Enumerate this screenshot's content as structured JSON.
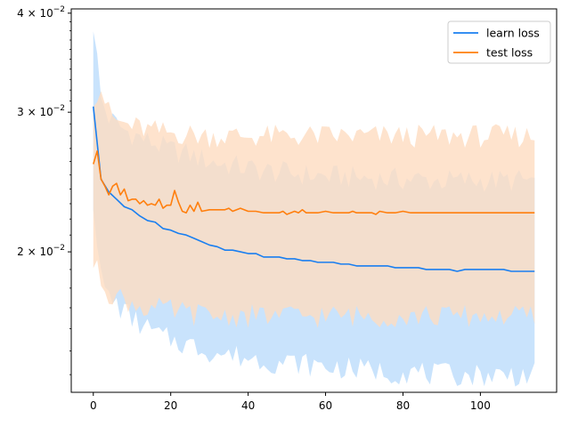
{
  "chart_data": {
    "type": "line",
    "title": "",
    "xlabel": "",
    "ylabel": "",
    "xlim": [
      -5.7,
      119.7
    ],
    "ylim": [
      0.0133,
      0.0405
    ],
    "yscale": "log",
    "grid": false,
    "legend_position": "top-right",
    "x_ticks": [
      0,
      20,
      40,
      60,
      80,
      100
    ],
    "x_tick_labels": [
      "0",
      "20",
      "40",
      "60",
      "80",
      "100"
    ],
    "y_ticks": [
      0.02,
      0.03,
      0.04
    ],
    "y_tick_labels": [
      {
        "base": "2",
        "exp": "−2"
      },
      {
        "base": "3",
        "exp": "−2"
      },
      {
        "base": "4",
        "exp": "−2"
      }
    ],
    "series": [
      {
        "name": "learn loss",
        "color": "#1a7ff0",
        "band_color": "#bcdcfb",
        "mean_points": [
          [
            0,
            0.0305
          ],
          [
            2,
            0.0247
          ],
          [
            4,
            0.0238
          ],
          [
            6,
            0.0233
          ],
          [
            8,
            0.0228
          ],
          [
            10,
            0.0226
          ],
          [
            12,
            0.0222
          ],
          [
            14,
            0.0219
          ],
          [
            16,
            0.0218
          ],
          [
            18,
            0.0214
          ],
          [
            20,
            0.0213
          ],
          [
            22,
            0.0211
          ],
          [
            24,
            0.021
          ],
          [
            26,
            0.0208
          ],
          [
            28,
            0.0206
          ],
          [
            30,
            0.0204
          ],
          [
            32,
            0.0203
          ],
          [
            34,
            0.0201
          ],
          [
            36,
            0.0201
          ],
          [
            38,
            0.02
          ],
          [
            40,
            0.0199
          ],
          [
            42,
            0.0199
          ],
          [
            44,
            0.0197
          ],
          [
            46,
            0.0197
          ],
          [
            48,
            0.0197
          ],
          [
            50,
            0.0196
          ],
          [
            52,
            0.0196
          ],
          [
            54,
            0.0195
          ],
          [
            56,
            0.0195
          ],
          [
            58,
            0.0194
          ],
          [
            60,
            0.0194
          ],
          [
            62,
            0.0194
          ],
          [
            64,
            0.0193
          ],
          [
            66,
            0.0193
          ],
          [
            68,
            0.0192
          ],
          [
            70,
            0.0192
          ],
          [
            72,
            0.0192
          ],
          [
            74,
            0.0192
          ],
          [
            76,
            0.0192
          ],
          [
            78,
            0.0191
          ],
          [
            80,
            0.0191
          ],
          [
            82,
            0.0191
          ],
          [
            84,
            0.0191
          ],
          [
            86,
            0.019
          ],
          [
            88,
            0.019
          ],
          [
            90,
            0.019
          ],
          [
            92,
            0.019
          ],
          [
            94,
            0.0189
          ],
          [
            96,
            0.019
          ],
          [
            98,
            0.019
          ],
          [
            100,
            0.019
          ],
          [
            102,
            0.019
          ],
          [
            104,
            0.019
          ],
          [
            106,
            0.019
          ],
          [
            108,
            0.0189
          ],
          [
            110,
            0.0189
          ],
          [
            112,
            0.0189
          ],
          [
            114,
            0.0189
          ]
        ],
        "lower_points": [
          [
            0,
            0.0232
          ],
          [
            2,
            0.0185
          ],
          [
            4,
            0.0175
          ],
          [
            6,
            0.0172
          ],
          [
            8,
            0.0168
          ],
          [
            10,
            0.0165
          ],
          [
            12,
            0.0162
          ],
          [
            14,
            0.016
          ],
          [
            16,
            0.0158
          ],
          [
            18,
            0.0156
          ],
          [
            20,
            0.0155
          ],
          [
            24,
            0.0153
          ],
          [
            28,
            0.0151
          ],
          [
            32,
            0.0149
          ],
          [
            36,
            0.0148
          ],
          [
            40,
            0.0147
          ],
          [
            44,
            0.0146
          ],
          [
            48,
            0.0145
          ],
          [
            52,
            0.0145
          ],
          [
            56,
            0.0144
          ],
          [
            60,
            0.0143
          ],
          [
            64,
            0.0143
          ],
          [
            68,
            0.0142
          ],
          [
            72,
            0.0142
          ],
          [
            76,
            0.0141
          ],
          [
            80,
            0.0141
          ],
          [
            84,
            0.0141
          ],
          [
            88,
            0.014
          ],
          [
            92,
            0.014
          ],
          [
            96,
            0.014
          ],
          [
            100,
            0.014
          ],
          [
            104,
            0.014
          ],
          [
            108,
            0.014
          ],
          [
            112,
            0.014
          ],
          [
            114,
            0.014
          ]
        ],
        "upper_points": [
          [
            0,
            0.0388
          ],
          [
            2,
            0.0312
          ],
          [
            4,
            0.0295
          ],
          [
            6,
            0.029
          ],
          [
            8,
            0.0285
          ],
          [
            10,
            0.0282
          ],
          [
            12,
            0.0279
          ],
          [
            14,
            0.0276
          ],
          [
            16,
            0.0274
          ],
          [
            18,
            0.0271
          ],
          [
            20,
            0.0269
          ],
          [
            24,
            0.0266
          ],
          [
            28,
            0.0262
          ],
          [
            32,
            0.0259
          ],
          [
            36,
            0.0257
          ],
          [
            40,
            0.0255
          ],
          [
            44,
            0.0253
          ],
          [
            48,
            0.0252
          ],
          [
            52,
            0.0251
          ],
          [
            56,
            0.025
          ],
          [
            60,
            0.0249
          ],
          [
            64,
            0.0249
          ],
          [
            68,
            0.0248
          ],
          [
            72,
            0.0248
          ],
          [
            76,
            0.0247
          ],
          [
            80,
            0.0247
          ],
          [
            84,
            0.0247
          ],
          [
            88,
            0.0246
          ],
          [
            92,
            0.0246
          ],
          [
            96,
            0.0246
          ],
          [
            100,
            0.0246
          ],
          [
            104,
            0.0246
          ],
          [
            108,
            0.0246
          ],
          [
            112,
            0.0246
          ],
          [
            114,
            0.0246
          ]
        ]
      },
      {
        "name": "test loss",
        "color": "#ff7f0e",
        "band_color": "#fedcc0",
        "mean_points": [
          [
            0,
            0.0258
          ],
          [
            1,
            0.0268
          ],
          [
            2,
            0.0247
          ],
          [
            3,
            0.0242
          ],
          [
            4,
            0.0236
          ],
          [
            5,
            0.0242
          ],
          [
            6,
            0.0244
          ],
          [
            7,
            0.0236
          ],
          [
            8,
            0.024
          ],
          [
            9,
            0.0232
          ],
          [
            10,
            0.0233
          ],
          [
            11,
            0.0233
          ],
          [
            12,
            0.023
          ],
          [
            13,
            0.0232
          ],
          [
            14,
            0.0229
          ],
          [
            15,
            0.023
          ],
          [
            16,
            0.0229
          ],
          [
            17,
            0.0233
          ],
          [
            18,
            0.0227
          ],
          [
            19,
            0.0229
          ],
          [
            20,
            0.0229
          ],
          [
            21,
            0.0239
          ],
          [
            22,
            0.0231
          ],
          [
            23,
            0.0225
          ],
          [
            24,
            0.0224
          ],
          [
            25,
            0.0229
          ],
          [
            26,
            0.0225
          ],
          [
            27,
            0.0231
          ],
          [
            28,
            0.0225
          ],
          [
            30,
            0.0226
          ],
          [
            32,
            0.0226
          ],
          [
            34,
            0.0226
          ],
          [
            35,
            0.0227
          ],
          [
            36,
            0.0225
          ],
          [
            38,
            0.0227
          ],
          [
            40,
            0.0225
          ],
          [
            42,
            0.0225
          ],
          [
            44,
            0.0224
          ],
          [
            46,
            0.0224
          ],
          [
            48,
            0.0224
          ],
          [
            49,
            0.0225
          ],
          [
            50,
            0.0223
          ],
          [
            52,
            0.0225
          ],
          [
            53,
            0.0224
          ],
          [
            54,
            0.0226
          ],
          [
            55,
            0.0224
          ],
          [
            56,
            0.0224
          ],
          [
            58,
            0.0224
          ],
          [
            60,
            0.0225
          ],
          [
            62,
            0.0224
          ],
          [
            64,
            0.0224
          ],
          [
            66,
            0.0224
          ],
          [
            67,
            0.0225
          ],
          [
            68,
            0.0224
          ],
          [
            70,
            0.0224
          ],
          [
            72,
            0.0224
          ],
          [
            73,
            0.0223
          ],
          [
            74,
            0.0225
          ],
          [
            76,
            0.0224
          ],
          [
            78,
            0.0224
          ],
          [
            80,
            0.0225
          ],
          [
            82,
            0.0224
          ],
          [
            84,
            0.0224
          ],
          [
            86,
            0.0224
          ],
          [
            88,
            0.0224
          ],
          [
            90,
            0.0224
          ],
          [
            92,
            0.0224
          ],
          [
            94,
            0.0224
          ],
          [
            96,
            0.0224
          ],
          [
            98,
            0.0224
          ],
          [
            100,
            0.0224
          ],
          [
            102,
            0.0224
          ],
          [
            104,
            0.0224
          ],
          [
            106,
            0.0224
          ],
          [
            108,
            0.0224
          ],
          [
            110,
            0.0224
          ],
          [
            112,
            0.0224
          ],
          [
            114,
            0.0224
          ]
        ],
        "lower_points": [
          [
            0,
            0.0193
          ],
          [
            2,
            0.0185
          ],
          [
            4,
            0.0178
          ],
          [
            6,
            0.0176
          ],
          [
            8,
            0.0174
          ],
          [
            10,
            0.0172
          ],
          [
            14,
            0.017
          ],
          [
            18,
            0.0169
          ],
          [
            22,
            0.0168
          ],
          [
            26,
            0.0167
          ],
          [
            30,
            0.0166
          ],
          [
            40,
            0.0166
          ],
          [
            50,
            0.0166
          ],
          [
            60,
            0.0166
          ],
          [
            70,
            0.0166
          ],
          [
            80,
            0.0166
          ],
          [
            90,
            0.0166
          ],
          [
            100,
            0.0166
          ],
          [
            114,
            0.0166
          ]
        ],
        "upper_points": [
          [
            0,
            0.0315
          ],
          [
            2,
            0.0322
          ],
          [
            4,
            0.03
          ],
          [
            6,
            0.0292
          ],
          [
            8,
            0.029
          ],
          [
            10,
            0.0288
          ],
          [
            14,
            0.0285
          ],
          [
            18,
            0.0283
          ],
          [
            22,
            0.0282
          ],
          [
            26,
            0.0281
          ],
          [
            30,
            0.028
          ],
          [
            40,
            0.028
          ],
          [
            50,
            0.028
          ],
          [
            60,
            0.028
          ],
          [
            70,
            0.028
          ],
          [
            80,
            0.028
          ],
          [
            90,
            0.028
          ],
          [
            100,
            0.028
          ],
          [
            114,
            0.028
          ]
        ]
      }
    ]
  }
}
